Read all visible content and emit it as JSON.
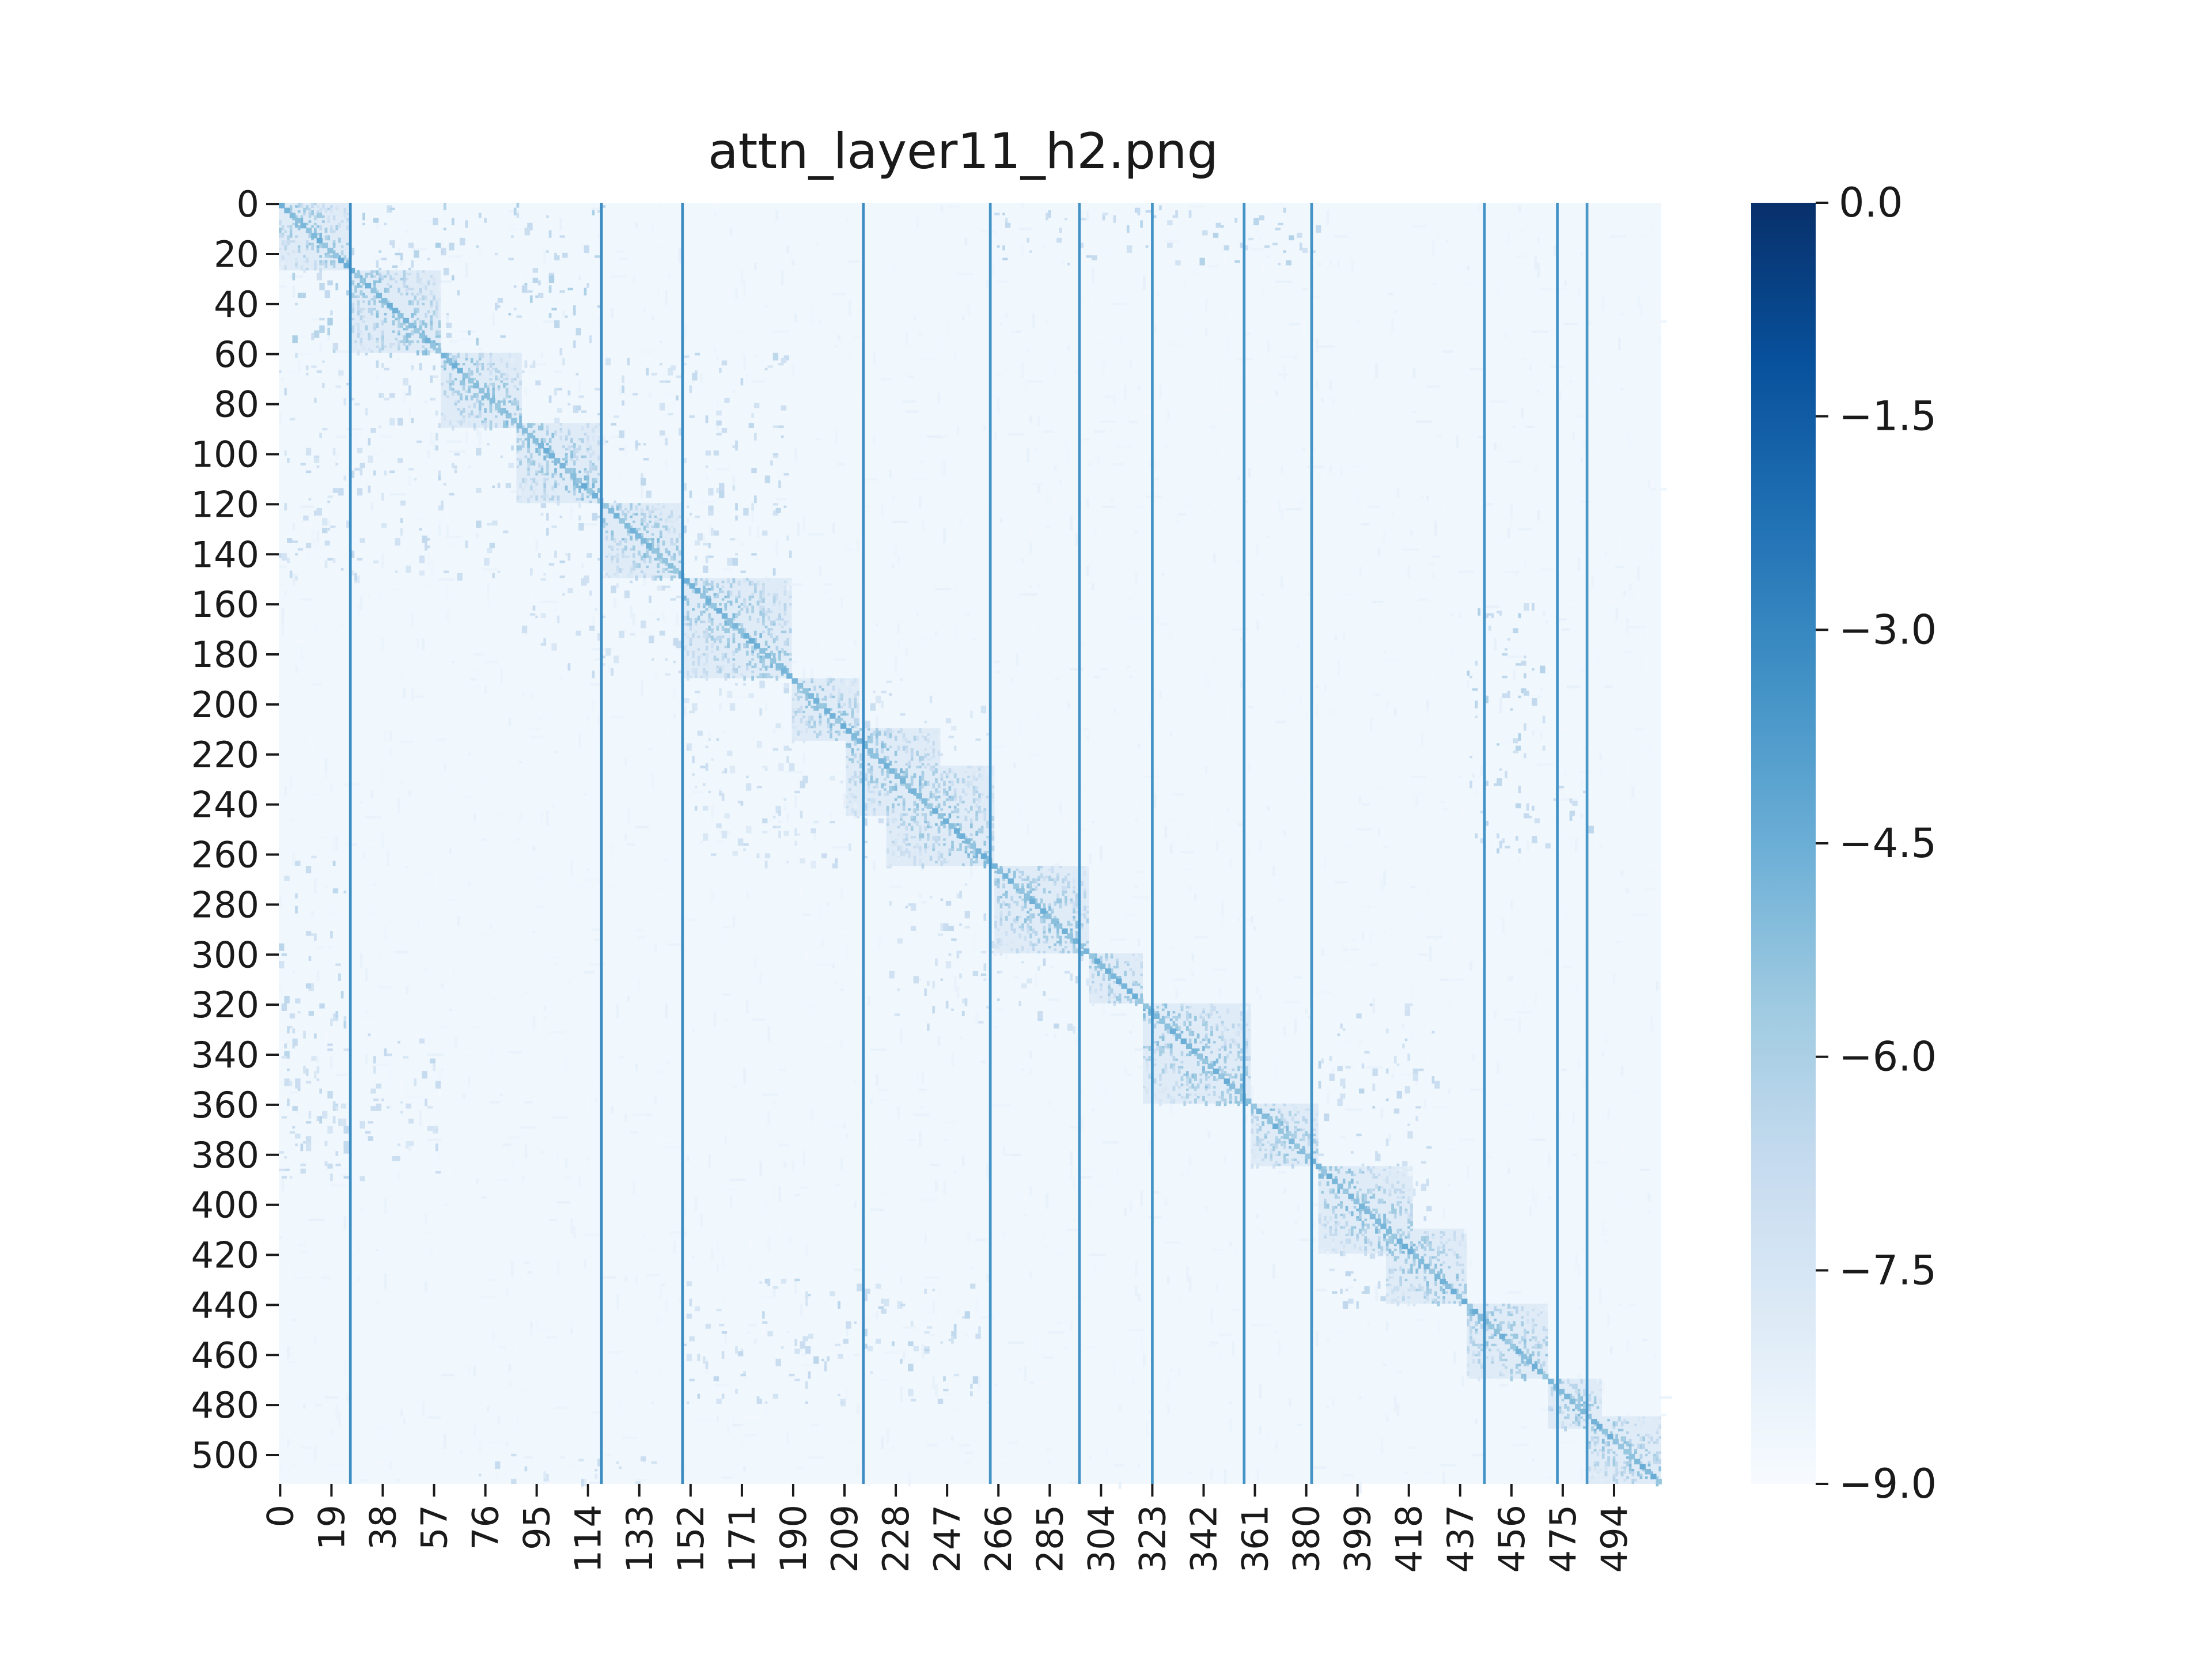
{
  "chart_data": {
    "type": "heatmap",
    "title": "attn_layer11_h2.png",
    "xlabel": "",
    "ylabel": "",
    "size": 512,
    "x_tick_labels": [
      "0",
      "19",
      "38",
      "57",
      "76",
      "95",
      "114",
      "133",
      "152",
      "171",
      "190",
      "209",
      "228",
      "247",
      "266",
      "285",
      "304",
      "323",
      "342",
      "361",
      "380",
      "399",
      "418",
      "437",
      "456",
      "475",
      "494"
    ],
    "y_tick_labels": [
      "0",
      "20",
      "40",
      "60",
      "80",
      "100",
      "120",
      "140",
      "160",
      "180",
      "200",
      "220",
      "240",
      "260",
      "280",
      "300",
      "320",
      "340",
      "360",
      "380",
      "400",
      "420",
      "440",
      "460",
      "480",
      "500"
    ],
    "colorbar": {
      "colormap": "Blues (reversed)",
      "range": [
        -9.0,
        0.0
      ],
      "tick_labels": [
        "0.0",
        "−1.5",
        "−3.0",
        "−4.5",
        "−6.0",
        "−7.5",
        "−9.0"
      ],
      "tick_values": [
        0.0,
        -1.5,
        -3.0,
        -4.5,
        -6.0,
        -7.5,
        -9.0
      ]
    },
    "diagonal_blocks": [
      [
        0,
        27
      ],
      [
        27,
        60
      ],
      [
        60,
        90
      ],
      [
        88,
        120
      ],
      [
        120,
        150
      ],
      [
        150,
        190
      ],
      [
        190,
        215
      ],
      [
        210,
        245
      ],
      [
        225,
        265
      ],
      [
        265,
        300
      ],
      [
        300,
        320
      ],
      [
        320,
        360
      ],
      [
        360,
        385
      ],
      [
        385,
        420
      ],
      [
        410,
        440
      ],
      [
        440,
        470
      ],
      [
        470,
        490
      ],
      [
        485,
        512
      ]
    ],
    "off_diagonal_regions": [
      {
        "rows": [
          0,
          60
        ],
        "cols": [
          0,
          120
        ],
        "level": -6.8
      },
      {
        "rows": [
          60,
          150
        ],
        "cols": [
          0,
          120
        ],
        "level": -7.4
      },
      {
        "rows": [
          60,
          150
        ],
        "cols": [
          120,
          190
        ],
        "level": -7.3
      },
      {
        "rows": [
          150,
          190
        ],
        "cols": [
          90,
          150
        ],
        "level": -7.6
      },
      {
        "rows": [
          0,
          25
        ],
        "cols": [
          265,
          385
        ],
        "level": -7.0
      },
      {
        "rows": [
          160,
          260
        ],
        "cols": [
          440,
          470
        ],
        "level": -7.0
      },
      {
        "rows": [
          230,
          250
        ],
        "cols": [
          460,
          490
        ],
        "level": -7.2
      },
      {
        "rows": [
          260,
          390
        ],
        "cols": [
          0,
          25
        ],
        "level": -7.2
      },
      {
        "rows": [
          330,
          390
        ],
        "cols": [
          0,
          60
        ],
        "level": -7.4
      },
      {
        "rows": [
          430,
          480
        ],
        "cols": [
          150,
          260
        ],
        "level": -7.3
      },
      {
        "rows": [
          320,
          440
        ],
        "cols": [
          385,
          430
        ],
        "level": -7.2
      },
      {
        "rows": [
          270,
          330
        ],
        "cols": [
          225,
          300
        ],
        "level": -7.4
      },
      {
        "rows": [
          190,
          265
        ],
        "cols": [
          150,
          265
        ],
        "level": -7.6
      },
      {
        "rows": [
          500,
          512
        ],
        "cols": [
          70,
          150
        ],
        "level": -7.6
      }
    ],
    "background_level": -8.7,
    "vertical_stripes": [
      {
        "col": 26,
        "level": -3.2
      },
      {
        "col": 119,
        "level": -3.2
      },
      {
        "col": 149,
        "level": -3.2
      },
      {
        "col": 216,
        "level": -3.2
      },
      {
        "col": 263,
        "level": -3.4
      },
      {
        "col": 296,
        "level": -3.4
      },
      {
        "col": 323,
        "level": -3.4
      },
      {
        "col": 357,
        "level": -3.4
      },
      {
        "col": 382,
        "level": -3.4
      },
      {
        "col": 446,
        "level": -3.4
      },
      {
        "col": 473,
        "level": -3.4
      },
      {
        "col": 484,
        "level": -3.6
      }
    ]
  }
}
